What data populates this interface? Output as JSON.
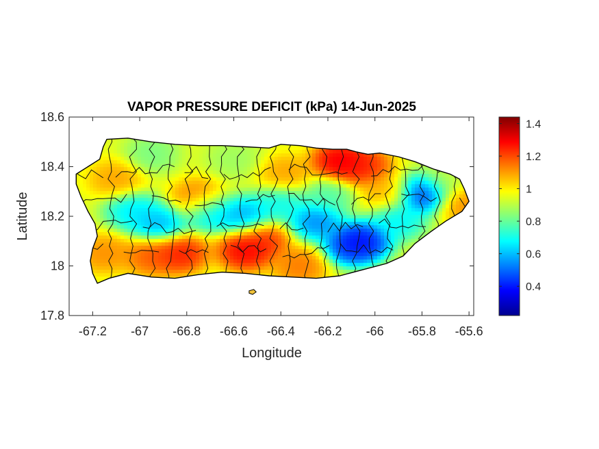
{
  "title": "VAPOR PRESSURE DEFICIT (kPa) 14-Jun-2025",
  "axes": {
    "xlabel": "Longitude",
    "ylabel": "Latitude",
    "xlim": [
      -67.3,
      -65.58
    ],
    "ylim": [
      17.8,
      18.6
    ],
    "xticks": [
      -67.2,
      -67,
      -66.8,
      -66.6,
      -66.4,
      -66.2,
      -66,
      -65.8,
      -65.6
    ],
    "xtick_labels": [
      "-67.2",
      "-67",
      "-66.8",
      "-66.6",
      "-66.4",
      "-66.2",
      "-66",
      "-65.8",
      "-65.6"
    ],
    "yticks": [
      17.8,
      18,
      18.2,
      18.4,
      18.6
    ],
    "ytick_labels": [
      "17.8",
      "18",
      "18.2",
      "18.4",
      "18.6"
    ]
  },
  "colorbar": {
    "colormap": "jet",
    "range": [
      0.22,
      1.44
    ],
    "ticks": [
      0.4,
      0.6,
      0.8,
      1,
      1.2,
      1.4
    ],
    "tick_labels": [
      "0.4",
      "0.6",
      "0.8",
      "1",
      "1.2",
      "1.4"
    ]
  },
  "map": {
    "region": "Puerto Rico",
    "variable": "Vapor pressure deficit",
    "units": "kPa",
    "date": "14-Jun-2025",
    "outline_color": "#000000",
    "field_hotspots": [
      {
        "lon": -66.15,
        "lat": 18.42,
        "vpd": 1.38
      },
      {
        "lon": -66.05,
        "lat": 18.4,
        "vpd": 1.3
      },
      {
        "lon": -66.83,
        "lat": 18.05,
        "vpd": 1.32
      },
      {
        "lon": -66.55,
        "lat": 18.06,
        "vpd": 1.36
      },
      {
        "lon": -66.48,
        "lat": 18.11,
        "vpd": 1.28
      },
      {
        "lon": -66.95,
        "lat": 18.04,
        "vpd": 1.22
      },
      {
        "lon": -67.15,
        "lat": 18.05,
        "vpd": 1.15
      },
      {
        "lon": -66.32,
        "lat": 18.0,
        "vpd": 1.18
      },
      {
        "lon": -66.75,
        "lat": 18.27,
        "vpd": 1.2
      },
      {
        "lon": -66.38,
        "lat": 18.37,
        "vpd": 1.12
      },
      {
        "lon": -65.62,
        "lat": 18.25,
        "vpd": 1.15
      },
      {
        "lon": -65.95,
        "lat": 18.3,
        "vpd": 1.1
      },
      {
        "lon": -67.1,
        "lat": 18.35,
        "vpd": 1.12
      },
      {
        "lon": -66.05,
        "lat": 18.1,
        "vpd": 0.3
      },
      {
        "lon": -66.1,
        "lat": 18.08,
        "vpd": 0.34
      },
      {
        "lon": -65.8,
        "lat": 18.29,
        "vpd": 0.33
      },
      {
        "lon": -66.55,
        "lat": 18.2,
        "vpd": 0.5
      },
      {
        "lon": -66.92,
        "lat": 18.17,
        "vpd": 0.52
      },
      {
        "lon": -66.25,
        "lat": 18.18,
        "vpd": 0.45
      },
      {
        "lon": -66.7,
        "lat": 18.22,
        "vpd": 0.55
      },
      {
        "lon": -67.03,
        "lat": 18.22,
        "vpd": 0.6
      },
      {
        "lon": -66.4,
        "lat": 18.25,
        "vpd": 0.65
      },
      {
        "lon": -65.9,
        "lat": 18.18,
        "vpd": 0.62
      },
      {
        "lon": -66.2,
        "lat": 18.28,
        "vpd": 0.75
      },
      {
        "lon": -66.95,
        "lat": 18.45,
        "vpd": 0.8
      },
      {
        "lon": -66.6,
        "lat": 18.43,
        "vpd": 0.85
      },
      {
        "lon": -65.7,
        "lat": 18.35,
        "vpd": 0.9
      }
    ],
    "field_base": 0.95
  }
}
